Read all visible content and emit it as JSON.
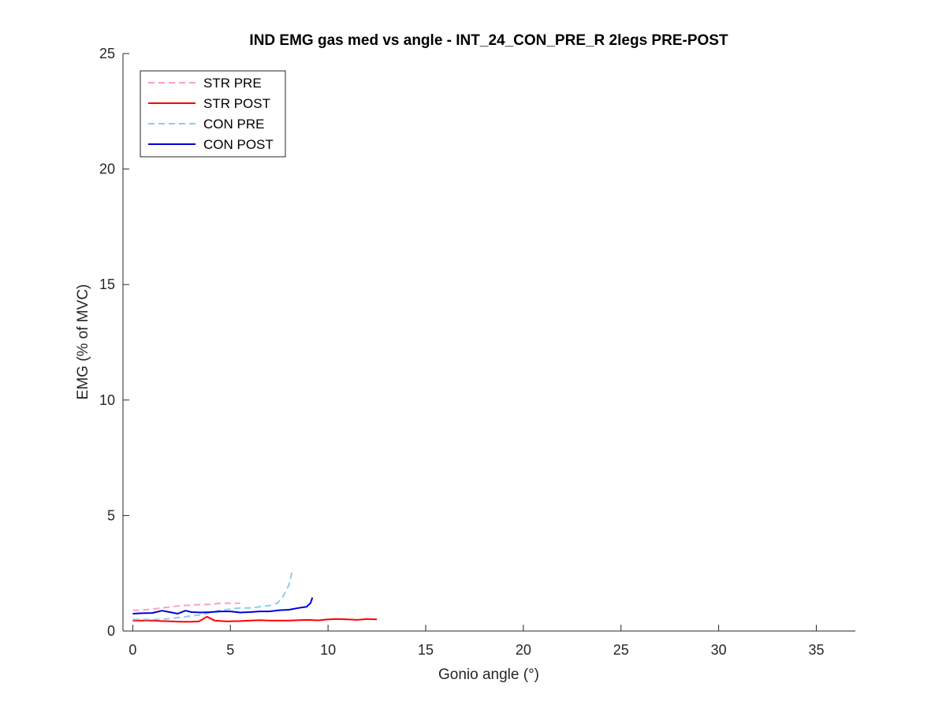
{
  "chart_data": {
    "type": "line",
    "title": "IND EMG gas med vs angle - INT_24_CON_PRE_R 2legs PRE-POST",
    "xlabel": "Gonio angle (°)",
    "ylabel": "EMG (% of MVC)",
    "xlim": [
      -0.5,
      37
    ],
    "ylim": [
      0,
      25
    ],
    "xticks": [
      0,
      5,
      10,
      15,
      20,
      25,
      30,
      35
    ],
    "yticks": [
      0,
      5,
      10,
      15,
      20,
      25
    ],
    "grid": false,
    "legend_position": "top-left",
    "series": [
      {
        "name": "STR PRE",
        "color": "#ff9fbf",
        "dash": "dashed",
        "x": [
          0,
          0.5,
          1,
          1.5,
          2,
          2.5,
          3,
          3.5,
          4,
          4.5,
          5,
          5.5
        ],
        "y": [
          0.9,
          0.9,
          0.95,
          1.0,
          1.05,
          1.1,
          1.12,
          1.15,
          1.15,
          1.2,
          1.2,
          1.2
        ]
      },
      {
        "name": "STR POST",
        "color": "#ff0000",
        "dash": "solid",
        "x": [
          0,
          0.5,
          1,
          1.5,
          2,
          2.5,
          3,
          3.4,
          3.8,
          4.2,
          4.8,
          5.5,
          6,
          6.5,
          7,
          7.5,
          8,
          8.5,
          9,
          9.5,
          10,
          10.5,
          11,
          11.5,
          12,
          12.5
        ],
        "y": [
          0.45,
          0.45,
          0.45,
          0.43,
          0.42,
          0.4,
          0.4,
          0.42,
          0.62,
          0.45,
          0.42,
          0.43,
          0.45,
          0.47,
          0.45,
          0.45,
          0.45,
          0.47,
          0.48,
          0.46,
          0.5,
          0.52,
          0.5,
          0.48,
          0.52,
          0.5
        ]
      },
      {
        "name": "CON PRE",
        "color": "#87cef2",
        "dash": "dashed",
        "x": [
          0,
          0.5,
          1,
          1.5,
          2,
          2.5,
          3,
          3.5,
          4,
          4.5,
          5,
          5.5,
          6,
          6.5,
          7,
          7.4,
          7.7,
          8.0,
          8.2
        ],
        "y": [
          0.5,
          0.5,
          0.5,
          0.5,
          0.55,
          0.6,
          0.65,
          0.7,
          0.8,
          0.9,
          0.95,
          1.0,
          1.0,
          1.05,
          1.1,
          1.2,
          1.5,
          2.0,
          2.7
        ]
      },
      {
        "name": "CON POST",
        "color": "#0000d4",
        "dash": "solid",
        "x": [
          0,
          0.5,
          1,
          1.5,
          2,
          2.3,
          2.7,
          3,
          3.5,
          4,
          4.5,
          5,
          5.5,
          6,
          6.5,
          7,
          7.5,
          8,
          8.5,
          8.9,
          9.1,
          9.2
        ],
        "y": [
          0.75,
          0.77,
          0.78,
          0.88,
          0.8,
          0.75,
          0.88,
          0.82,
          0.8,
          0.82,
          0.85,
          0.85,
          0.8,
          0.82,
          0.85,
          0.85,
          0.9,
          0.92,
          1.0,
          1.05,
          1.2,
          1.45
        ]
      }
    ]
  }
}
